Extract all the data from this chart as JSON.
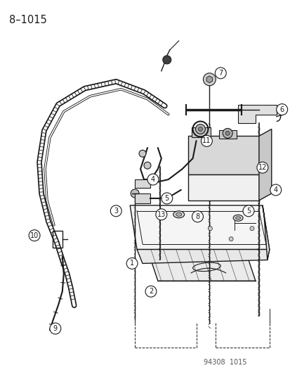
{
  "title": "8–1015",
  "watermark": "94308  1015",
  "bg_color": "#ffffff",
  "fg_color": "#1a1a1a",
  "figsize": [
    4.14,
    5.33
  ],
  "dpi": 100
}
